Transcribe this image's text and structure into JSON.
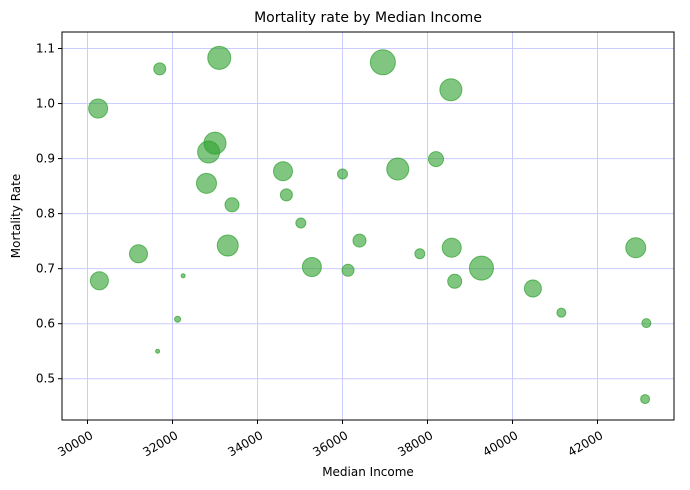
{
  "chart_data": {
    "type": "scatter",
    "title": "Mortality rate by Median Income",
    "xlabel": "Median Income",
    "ylabel": "Mortality Rate",
    "xlim": [
      29400,
      43800
    ],
    "ylim": [
      0.425,
      1.13
    ],
    "xticks": [
      30000,
      32000,
      34000,
      36000,
      38000,
      40000,
      42000
    ],
    "yticks": [
      0.5,
      0.6,
      0.7,
      0.8,
      0.9,
      1.0,
      1.1
    ],
    "grid": true,
    "colors": {
      "marker": "#2ca02c",
      "grid": "#ccccff"
    },
    "points": [
      {
        "x": 30250,
        "y": 0.991,
        "size": 9.5
      },
      {
        "x": 30280,
        "y": 0.678,
        "size": 9
      },
      {
        "x": 31200,
        "y": 0.727,
        "size": 9
      },
      {
        "x": 31700,
        "y": 1.063,
        "size": 6
      },
      {
        "x": 31650,
        "y": 0.55,
        "size": 2
      },
      {
        "x": 32120,
        "y": 0.608,
        "size": 3
      },
      {
        "x": 32250,
        "y": 0.687,
        "size": 2
      },
      {
        "x": 32800,
        "y": 0.855,
        "size": 10
      },
      {
        "x": 32850,
        "y": 0.912,
        "size": 11
      },
      {
        "x": 33000,
        "y": 0.928,
        "size": 11
      },
      {
        "x": 33100,
        "y": 1.083,
        "size": 11.5
      },
      {
        "x": 33300,
        "y": 0.742,
        "size": 10.5
      },
      {
        "x": 33400,
        "y": 0.816,
        "size": 7
      },
      {
        "x": 34600,
        "y": 0.877,
        "size": 9.5
      },
      {
        "x": 34680,
        "y": 0.834,
        "size": 6
      },
      {
        "x": 35020,
        "y": 0.783,
        "size": 5
      },
      {
        "x": 35280,
        "y": 0.703,
        "size": 9.5
      },
      {
        "x": 36000,
        "y": 0.872,
        "size": 5
      },
      {
        "x": 36130,
        "y": 0.697,
        "size": 6
      },
      {
        "x": 36400,
        "y": 0.751,
        "size": 6.5
      },
      {
        "x": 36950,
        "y": 1.075,
        "size": 12.5
      },
      {
        "x": 37300,
        "y": 0.881,
        "size": 11
      },
      {
        "x": 37820,
        "y": 0.727,
        "size": 5
      },
      {
        "x": 38200,
        "y": 0.899,
        "size": 7.5
      },
      {
        "x": 38550,
        "y": 1.025,
        "size": 11
      },
      {
        "x": 38570,
        "y": 0.738,
        "size": 9.5
      },
      {
        "x": 38640,
        "y": 0.677,
        "size": 7
      },
      {
        "x": 39270,
        "y": 0.701,
        "size": 12
      },
      {
        "x": 40480,
        "y": 0.664,
        "size": 8.5
      },
      {
        "x": 41150,
        "y": 0.62,
        "size": 4.5
      },
      {
        "x": 42900,
        "y": 0.738,
        "size": 10
      },
      {
        "x": 43150,
        "y": 0.601,
        "size": 4.5
      },
      {
        "x": 43120,
        "y": 0.463,
        "size": 4.5
      }
    ]
  }
}
